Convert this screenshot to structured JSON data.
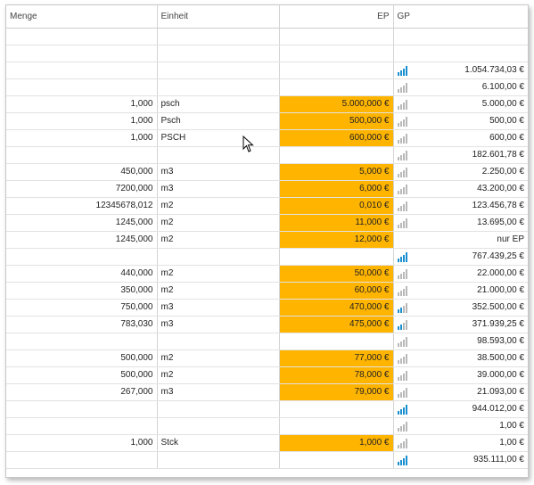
{
  "header": {
    "menge": "Menge",
    "einheit": "Einheit",
    "ep": "EP",
    "gp": "GP"
  },
  "rows": [
    {
      "menge": "",
      "einheit": "",
      "ep": "",
      "gp": "",
      "ep_filled": false,
      "icon": "none"
    },
    {
      "menge": "",
      "einheit": "",
      "ep": "",
      "gp": "",
      "ep_filled": false,
      "icon": "none"
    },
    {
      "menge": "",
      "einheit": "",
      "ep": "",
      "gp": "1.054.734,03 €",
      "ep_filled": false,
      "icon": "blue"
    },
    {
      "menge": "",
      "einheit": "",
      "ep": "",
      "gp": "6.100,00 €",
      "ep_filled": false,
      "icon": "gray"
    },
    {
      "menge": "1,000",
      "einheit": "psch",
      "ep": "5.000,000 €",
      "gp": "5.000,00 €",
      "ep_filled": true,
      "icon": "gray"
    },
    {
      "menge": "1,000",
      "einheit": "Psch",
      "ep": "500,000 €",
      "gp": "500,00 €",
      "ep_filled": true,
      "icon": "gray"
    },
    {
      "menge": "1,000",
      "einheit": "PSCH",
      "ep": "600,000 €",
      "gp": "600,00 €",
      "ep_filled": true,
      "icon": "gray"
    },
    {
      "menge": "",
      "einheit": "",
      "ep": "",
      "gp": "182.601,78 €",
      "ep_filled": false,
      "icon": "gray"
    },
    {
      "menge": "450,000",
      "einheit": "m3",
      "ep": "5,000 €",
      "gp": "2.250,00 €",
      "ep_filled": true,
      "icon": "gray"
    },
    {
      "menge": "7200,000",
      "einheit": "m3",
      "ep": "6,000 €",
      "gp": "43.200,00 €",
      "ep_filled": true,
      "icon": "gray"
    },
    {
      "menge": "12345678,012",
      "einheit": "m2",
      "ep": "0,010 €",
      "gp": "123.456,78 €",
      "ep_filled": true,
      "icon": "gray"
    },
    {
      "menge": "1245,000",
      "einheit": "m2",
      "ep": "11,000 €",
      "gp": "13.695,00 €",
      "ep_filled": true,
      "icon": "gray"
    },
    {
      "menge": "1245,000",
      "einheit": "m2",
      "ep": "12,000 €",
      "gp": "nur EP",
      "ep_filled": true,
      "icon": "none"
    },
    {
      "menge": "",
      "einheit": "",
      "ep": "",
      "gp": "767.439,25 €",
      "ep_filled": false,
      "icon": "blue"
    },
    {
      "menge": "440,000",
      "einheit": "m2",
      "ep": "50,000 €",
      "gp": "22.000,00 €",
      "ep_filled": true,
      "icon": "gray"
    },
    {
      "menge": "350,000",
      "einheit": "m2",
      "ep": "60,000 €",
      "gp": "21.000,00 €",
      "ep_filled": true,
      "icon": "gray"
    },
    {
      "menge": "750,000",
      "einheit": "m3",
      "ep": "470,000 €",
      "gp": "352.500,00 €",
      "ep_filled": true,
      "icon": "mixed"
    },
    {
      "menge": "783,030",
      "einheit": "m3",
      "ep": "475,000 €",
      "gp": "371.939,25 €",
      "ep_filled": true,
      "icon": "mixed"
    },
    {
      "menge": "",
      "einheit": "",
      "ep": "",
      "gp": "98.593,00 €",
      "ep_filled": false,
      "icon": "gray"
    },
    {
      "menge": "500,000",
      "einheit": "m2",
      "ep": "77,000 €",
      "gp": "38.500,00 €",
      "ep_filled": true,
      "icon": "gray"
    },
    {
      "menge": "500,000",
      "einheit": "m2",
      "ep": "78,000 €",
      "gp": "39.000,00 €",
      "ep_filled": true,
      "icon": "gray"
    },
    {
      "menge": "267,000",
      "einheit": "m3",
      "ep": "79,000 €",
      "gp": "21.093,00 €",
      "ep_filled": true,
      "icon": "gray"
    },
    {
      "menge": "",
      "einheit": "",
      "ep": "",
      "gp": "944.012,00 €",
      "ep_filled": false,
      "icon": "blue"
    },
    {
      "menge": "",
      "einheit": "",
      "ep": "",
      "gp": "1,00 €",
      "ep_filled": false,
      "icon": "gray"
    },
    {
      "menge": "1,000",
      "einheit": "Stck",
      "ep": "1,000 €",
      "gp": "1,00 €",
      "ep_filled": true,
      "icon": "gray"
    },
    {
      "menge": "",
      "einheit": "",
      "ep": "",
      "gp": "935.111,00 €",
      "ep_filled": false,
      "icon": "blue"
    }
  ],
  "colors": {
    "ep_highlight": "#ffb400",
    "signal_blue": "#1a8fd0",
    "signal_gray": "#b8b8b8"
  }
}
